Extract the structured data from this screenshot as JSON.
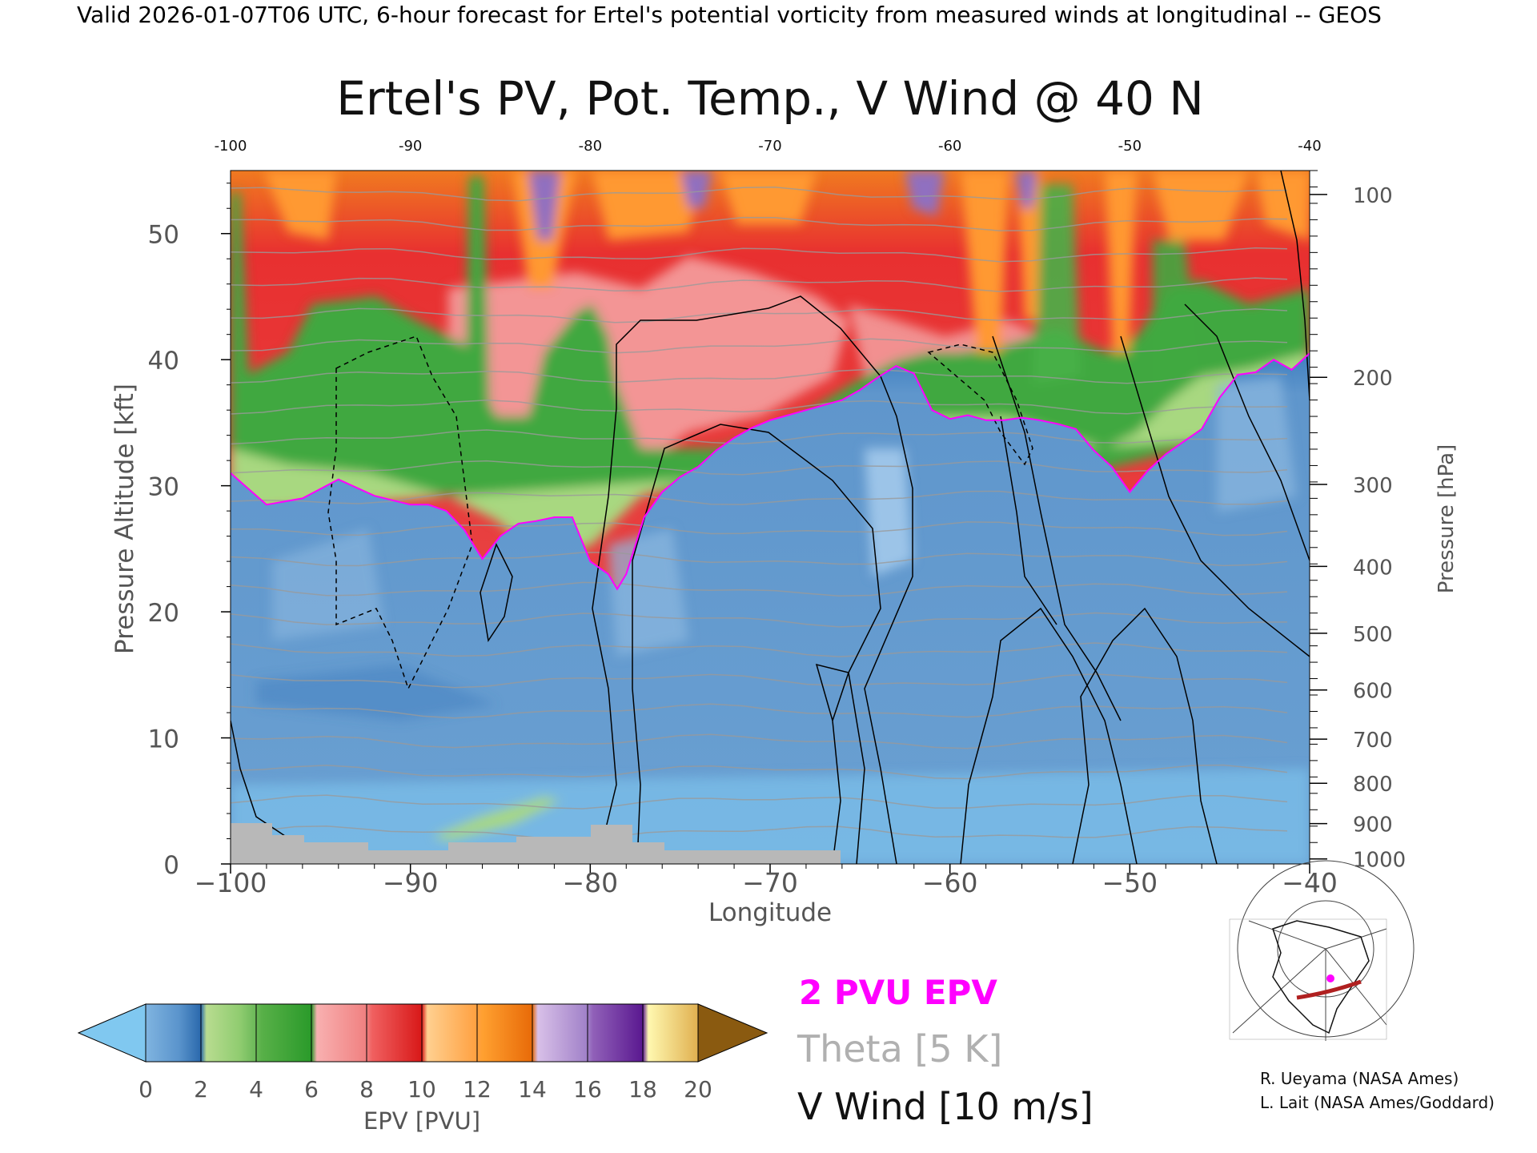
{
  "header": {
    "line": "Valid 2026-01-07T06 UTC, 6-hour forecast for Ertel's potential vorticity from measured winds at longitudinal -- GEOS"
  },
  "chart_data": {
    "type": "heatmap",
    "title": "Ertel's PV, Pot. Temp., V Wind @ 40 N",
    "xlabel": "Longitude",
    "ylabel_left": "Pressure Altitude [kft]",
    "ylabel_right": "Pressure [hPa]",
    "xlim": [
      -100,
      -40
    ],
    "ylim": [
      0,
      55
    ],
    "x_ticks": [
      -100,
      -90,
      -80,
      -70,
      -60,
      -50,
      -40
    ],
    "x_tick_labels": [
      "−100",
      "−90",
      "−80",
      "−70",
      "−60",
      "−50",
      "−40"
    ],
    "top_tick_labels": [
      "-100",
      "-90",
      "-80",
      "-70",
      "-60",
      "-50",
      "-40"
    ],
    "y_ticks": [
      0,
      10,
      20,
      30,
      40,
      50
    ],
    "pressure_ticks_kft": [
      53.1,
      38.6,
      30.1,
      23.6,
      18.3,
      13.8,
      9.9,
      6.4,
      3.2,
      0.4
    ],
    "pressure_tick_labels": [
      "100",
      "200",
      "300",
      "400",
      "500",
      "600",
      "700",
      "800",
      "900",
      "1000"
    ],
    "tropopause_2pvu": {
      "x": [
        -100,
        -98,
        -96,
        -94,
        -92,
        -90,
        -89,
        -88,
        -87,
        -86,
        -85,
        -84,
        -83,
        -82,
        -81,
        -80,
        -79,
        -78.5,
        -78,
        -77,
        -76,
        -75,
        -74,
        -73,
        -72,
        -71,
        -70,
        -69,
        -68,
        -67,
        -66,
        -65,
        -64,
        -63,
        -62,
        -61,
        -60,
        -59,
        -58,
        -57,
        -56,
        -55,
        -54,
        -53,
        -52,
        -51,
        -50,
        -49,
        -48,
        -47,
        -46,
        -45,
        -44,
        -43,
        -42,
        -41,
        -40
      ],
      "y": [
        31,
        28.5,
        29,
        30.5,
        29.2,
        28.5,
        28.5,
        28,
        26.5,
        24.2,
        26,
        27,
        27.2,
        27.5,
        27.5,
        24,
        23,
        21.8,
        23,
        27.5,
        29.5,
        30.7,
        31.5,
        32.8,
        33.8,
        34.6,
        35.2,
        35.6,
        36,
        36.4,
        36.8,
        37.6,
        38.6,
        39.5,
        38.9,
        36,
        35.3,
        35.6,
        35.2,
        35.2,
        35.4,
        35.2,
        34.9,
        34.5,
        32.8,
        31.5,
        29.5,
        31.2,
        32.5,
        33.5,
        34.5,
        37,
        38.8,
        39,
        40,
        39.2,
        40.5
      ]
    },
    "colorbar": {
      "label": "EPV [PVU]",
      "ticks": [
        "0",
        "2",
        "4",
        "6",
        "8",
        "10",
        "12",
        "14",
        "16",
        "18",
        "20"
      ],
      "under_color": "#80c8f0",
      "over_color": "#8a5a10",
      "colors": [
        "#6a9fd0",
        "#2e70b0",
        "#c0e090",
        "#70c050",
        "#30a030",
        "#f4a0a0",
        "#f07070",
        "#e02020",
        "#ffc070",
        "#ffa040",
        "#f07010",
        "#d0b0e0",
        "#9070c0",
        "#6020a0",
        "#fff0a0",
        "#f0d070",
        "#c09030",
        "#a07020"
      ]
    },
    "legend": [
      {
        "label": "2 PVU EPV",
        "color": "#ff00ff"
      },
      {
        "label": "Theta [5 K]",
        "color": "#b0b0b0"
      },
      {
        "label": "V Wind [10 m/s]",
        "color": "#000000"
      }
    ]
  },
  "credits": {
    "line1": "R. Ueyama (NASA Ames)",
    "line2": "L. Lait (NASA Ames/Goddard)"
  },
  "colors": {
    "stratosphere_red": "#e83030",
    "pink": "#f4a0a0",
    "green": "#40a840",
    "light_green": "#a8d880",
    "orange": "#ff9930",
    "purple": "#9070c0",
    "trop_blue": "#6aa0d2",
    "pale_blue": "#9cc4e8",
    "light_blue": "#80c8f0",
    "terrain_gray": "#b8b8b8",
    "tropopause": "#ff00ff"
  }
}
